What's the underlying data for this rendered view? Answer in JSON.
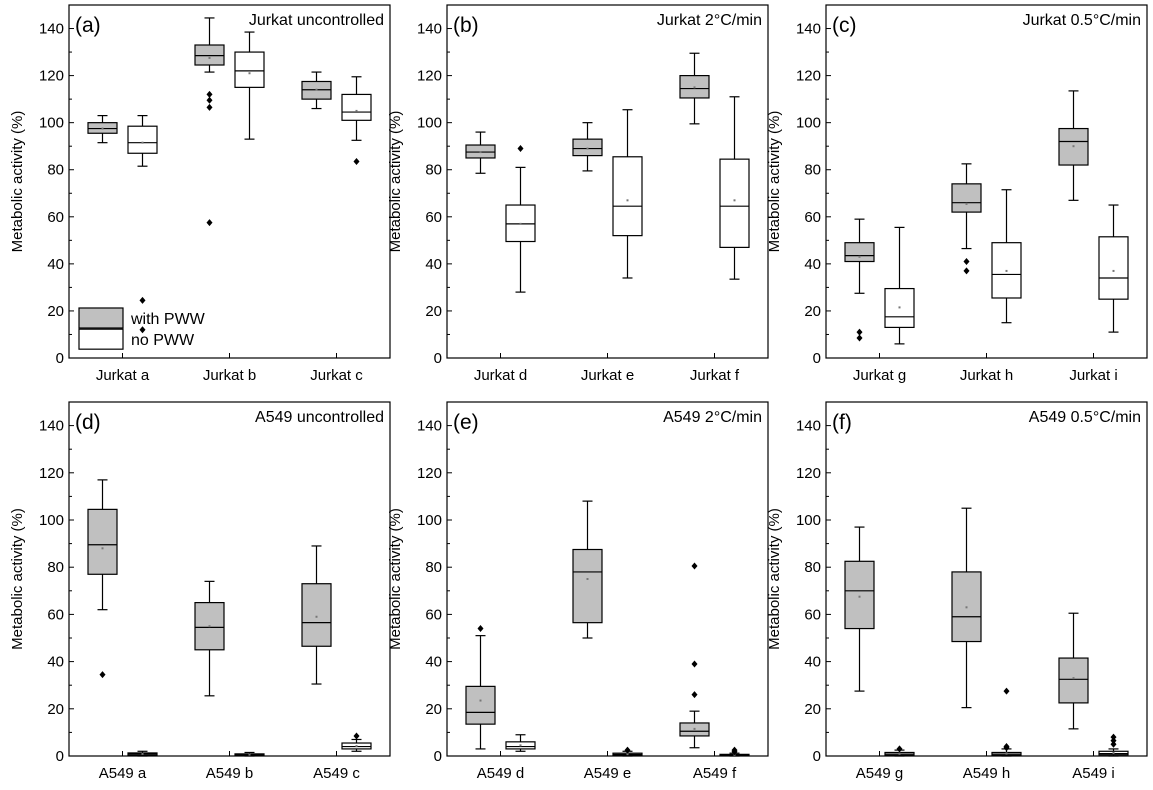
{
  "figure": {
    "colors": {
      "with": "#c0c0c0",
      "no": "#ffffff",
      "stroke": "#000000"
    },
    "legend": {
      "with_label": "with PWW",
      "no_label": "no PWW",
      "panel": 0
    }
  },
  "chart_data": [
    {
      "type": "box",
      "panel": "(a)",
      "title": "Jurkat uncontrolled",
      "ylabel": "Metabolic activity (%)",
      "ylim": [
        0,
        150
      ],
      "yticks": [
        0,
        20,
        40,
        60,
        80,
        100,
        120,
        140
      ],
      "categories": [
        "Jurkat a",
        "Jurkat b",
        "Jurkat c"
      ],
      "series": [
        {
          "key": "with",
          "boxes": [
            {
              "min": 91.5,
              "q1": 95.5,
              "median": 97.5,
              "q3": 100,
              "max": 103,
              "mean": 97.5,
              "outliers": []
            },
            {
              "min": 121.5,
              "q1": 124.5,
              "median": 128.5,
              "q3": 133,
              "max": 144.5,
              "mean": 127.5,
              "outliers": [
                112,
                109.5,
                106.5,
                57.5
              ]
            },
            {
              "min": 106,
              "q1": 110,
              "median": 114,
              "q3": 117.5,
              "max": 121.5,
              "mean": 114,
              "outliers": []
            }
          ]
        },
        {
          "key": "no",
          "boxes": [
            {
              "min": 81.5,
              "q1": 87,
              "median": 91.5,
              "q3": 98.5,
              "max": 103,
              "mean": 91.5,
              "outliers": [
                24.5,
                12
              ]
            },
            {
              "min": 93,
              "q1": 115,
              "median": 122,
              "q3": 130,
              "max": 138.5,
              "mean": 121,
              "outliers": []
            },
            {
              "min": 92.5,
              "q1": 101,
              "median": 104.5,
              "q3": 112,
              "max": 119.5,
              "mean": 105,
              "outliers": [
                83.5
              ]
            }
          ]
        }
      ]
    },
    {
      "type": "box",
      "panel": "(b)",
      "title": "Jurkat 2°C/min",
      "ylabel": "Metabolic activity (%)",
      "ylim": [
        0,
        150
      ],
      "yticks": [
        0,
        20,
        40,
        60,
        80,
        100,
        120,
        140
      ],
      "categories": [
        "Jurkat d",
        "Jurkat e",
        "Jurkat f"
      ],
      "series": [
        {
          "key": "with",
          "boxes": [
            {
              "min": 78.5,
              "q1": 85,
              "median": 87.5,
              "q3": 90.5,
              "max": 96,
              "mean": 87.5,
              "outliers": []
            },
            {
              "min": 79.5,
              "q1": 86,
              "median": 89,
              "q3": 93,
              "max": 100,
              "mean": 89,
              "outliers": []
            },
            {
              "min": 99.5,
              "q1": 110.5,
              "median": 114.5,
              "q3": 120,
              "max": 129.5,
              "mean": 115,
              "outliers": []
            }
          ]
        },
        {
          "key": "no",
          "boxes": [
            {
              "min": 28,
              "q1": 49.5,
              "median": 57,
              "q3": 65,
              "max": 81,
              "mean": 57,
              "outliers": [
                89
              ]
            },
            {
              "min": 34,
              "q1": 52,
              "median": 64.5,
              "q3": 85.5,
              "max": 105.5,
              "mean": 67,
              "outliers": []
            },
            {
              "min": 33.5,
              "q1": 47,
              "median": 64.5,
              "q3": 84.5,
              "max": 111,
              "mean": 67,
              "outliers": []
            }
          ]
        }
      ]
    },
    {
      "type": "box",
      "panel": "(c)",
      "title": "Jurkat 0.5°C/min",
      "ylabel": "Metabolic activity (%)",
      "ylim": [
        0,
        150
      ],
      "yticks": [
        0,
        20,
        40,
        60,
        80,
        100,
        120,
        140
      ],
      "categories": [
        "Jurkat g",
        "Jurkat h",
        "Jurkat i"
      ],
      "series": [
        {
          "key": "with",
          "boxes": [
            {
              "min": 27.5,
              "q1": 41,
              "median": 43.5,
              "q3": 49,
              "max": 59,
              "mean": 43,
              "outliers": [
                11,
                8.5
              ]
            },
            {
              "min": 46.5,
              "q1": 62,
              "median": 66,
              "q3": 74,
              "max": 82.5,
              "mean": 65.5,
              "outliers": [
                41,
                37
              ]
            },
            {
              "min": 67,
              "q1": 82,
              "median": 92,
              "q3": 97.5,
              "max": 113.5,
              "mean": 90,
              "outliers": []
            }
          ]
        },
        {
          "key": "no",
          "boxes": [
            {
              "min": 6,
              "q1": 13,
              "median": 17.5,
              "q3": 29.5,
              "max": 55.5,
              "mean": 21.5,
              "outliers": []
            },
            {
              "min": 15,
              "q1": 25.5,
              "median": 35.5,
              "q3": 49,
              "max": 71.5,
              "mean": 37,
              "outliers": []
            },
            {
              "min": 11,
              "q1": 25,
              "median": 34,
              "q3": 51.5,
              "max": 65,
              "mean": 37,
              "outliers": []
            }
          ]
        }
      ]
    },
    {
      "type": "box",
      "panel": "(d)",
      "title": "A549 uncontrolled",
      "ylabel": "Metabolic activity (%)",
      "ylim": [
        0,
        150
      ],
      "yticks": [
        0,
        20,
        40,
        60,
        80,
        100,
        120,
        140
      ],
      "categories": [
        "A549 a",
        "A549 b",
        "A549 c"
      ],
      "series": [
        {
          "key": "with",
          "boxes": [
            {
              "min": 62,
              "q1": 77,
              "median": 89.5,
              "q3": 104.5,
              "max": 117,
              "mean": 88,
              "outliers": [
                34.5
              ]
            },
            {
              "min": 25.5,
              "q1": 45,
              "median": 54.5,
              "q3": 65,
              "max": 74,
              "mean": 55,
              "outliers": []
            },
            {
              "min": 30.5,
              "q1": 46.5,
              "median": 56.5,
              "q3": 73,
              "max": 89,
              "mean": 59,
              "outliers": []
            }
          ]
        },
        {
          "key": "no",
          "boxes": [
            {
              "min": 0,
              "q1": 0.3,
              "median": 0.8,
              "q3": 1.3,
              "max": 2,
              "mean": 0.9,
              "outliers": []
            },
            {
              "min": 0,
              "q1": 0.2,
              "median": 0.5,
              "q3": 0.9,
              "max": 1.5,
              "mean": 0.6,
              "outliers": []
            },
            {
              "min": 2,
              "q1": 3,
              "median": 4,
              "q3": 5.5,
              "max": 7,
              "mean": 4.2,
              "outliers": [
                8.5
              ]
            }
          ]
        }
      ]
    },
    {
      "type": "box",
      "panel": "(e)",
      "title": "A549 2°C/min",
      "ylabel": "Metabolic activity (%)",
      "ylim": [
        0,
        150
      ],
      "yticks": [
        0,
        20,
        40,
        60,
        80,
        100,
        120,
        140
      ],
      "categories": [
        "A549 d",
        "A549 e",
        "A549 f"
      ],
      "series": [
        {
          "key": "with",
          "boxes": [
            {
              "min": 3,
              "q1": 13.5,
              "median": 18.5,
              "q3": 29.5,
              "max": 51,
              "mean": 23.5,
              "outliers": [
                54
              ]
            },
            {
              "min": 50,
              "q1": 56.5,
              "median": 78,
              "q3": 87.5,
              "max": 108,
              "mean": 75,
              "outliers": []
            },
            {
              "min": 3.5,
              "q1": 8.5,
              "median": 10.5,
              "q3": 14,
              "max": 19,
              "mean": 11.5,
              "outliers": [
                80.5,
                39,
                26
              ]
            }
          ]
        },
        {
          "key": "no",
          "boxes": [
            {
              "min": 2,
              "q1": 3,
              "median": 4,
              "q3": 6,
              "max": 9,
              "mean": 4.5,
              "outliers": []
            },
            {
              "min": 0,
              "q1": 0.3,
              "median": 0.7,
              "q3": 1.2,
              "max": 2,
              "mean": 0.8,
              "outliers": [
                2.5
              ]
            },
            {
              "min": 0,
              "q1": 0.2,
              "median": 0.4,
              "q3": 0.7,
              "max": 1.2,
              "mean": 0.5,
              "outliers": [
                2.5,
                1.8
              ]
            }
          ]
        }
      ]
    },
    {
      "type": "box",
      "panel": "(f)",
      "title": "A549 0.5°C/min",
      "ylabel": "Metabolic activity (%)",
      "ylim": [
        0,
        150
      ],
      "yticks": [
        0,
        20,
        40,
        60,
        80,
        100,
        120,
        140
      ],
      "categories": [
        "A549 g",
        "A549 h",
        "A549 i"
      ],
      "series": [
        {
          "key": "with",
          "boxes": [
            {
              "min": 27.5,
              "q1": 54,
              "median": 70,
              "q3": 82.5,
              "max": 97,
              "mean": 67.5,
              "outliers": []
            },
            {
              "min": 20.5,
              "q1": 48.5,
              "median": 59,
              "q3": 78,
              "max": 105,
              "mean": 63,
              "outliers": []
            },
            {
              "min": 11.5,
              "q1": 22.5,
              "median": 32.5,
              "q3": 41.5,
              "max": 60.5,
              "mean": 33,
              "outliers": []
            }
          ]
        },
        {
          "key": "no",
          "boxes": [
            {
              "min": 0,
              "q1": 0.3,
              "median": 0.8,
              "q3": 1.5,
              "max": 2.5,
              "mean": 1,
              "outliers": [
                3
              ]
            },
            {
              "min": 0,
              "q1": 0.3,
              "median": 0.8,
              "q3": 1.5,
              "max": 3,
              "mean": 1.1,
              "outliers": [
                27.5,
                4,
                3.5
              ]
            },
            {
              "min": 0,
              "q1": 0.5,
              "median": 1,
              "q3": 2,
              "max": 3,
              "mean": 1.3,
              "outliers": [
                8,
                6.5,
                5
              ]
            }
          ]
        }
      ]
    }
  ]
}
